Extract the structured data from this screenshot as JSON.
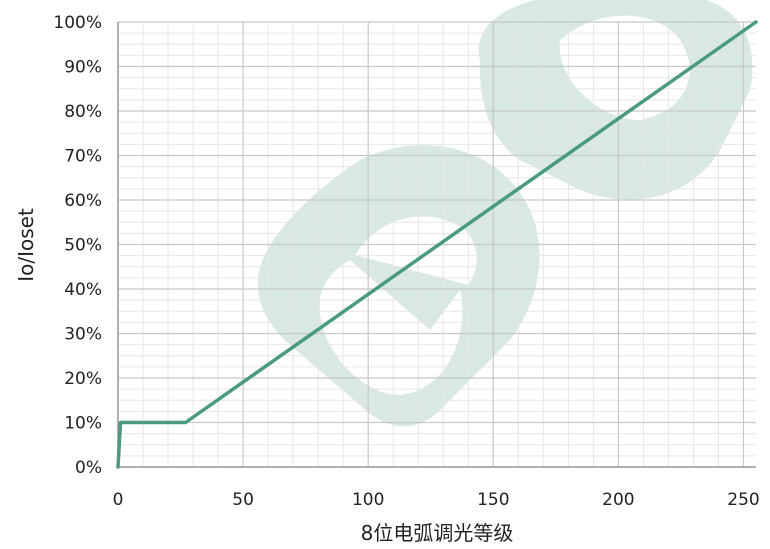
{
  "chart_data": {
    "type": "line",
    "title": "",
    "xlabel": "8位电弧调光等级",
    "ylabel": "Io/Ioset",
    "xlim": [
      0,
      255
    ],
    "ylim": [
      0,
      100
    ],
    "x_ticks": [
      0,
      50,
      100,
      150,
      200,
      250
    ],
    "x_tick_labels": [
      "0",
      "50",
      "100",
      "150",
      "200",
      "250"
    ],
    "y_ticks": [
      0,
      10,
      20,
      30,
      40,
      50,
      60,
      70,
      80,
      90,
      100
    ],
    "y_tick_labels": [
      "0%",
      "10%",
      "20%",
      "30%",
      "40%",
      "50%",
      "60%",
      "70%",
      "80%",
      "90%",
      "100%"
    ],
    "grid": true,
    "line_color": "#4a9a7e",
    "watermark_color": "#d4e6e1",
    "series": [
      {
        "x": [
          0,
          1,
          27,
          255
        ],
        "y": [
          0,
          10,
          10,
          100
        ]
      }
    ]
  }
}
